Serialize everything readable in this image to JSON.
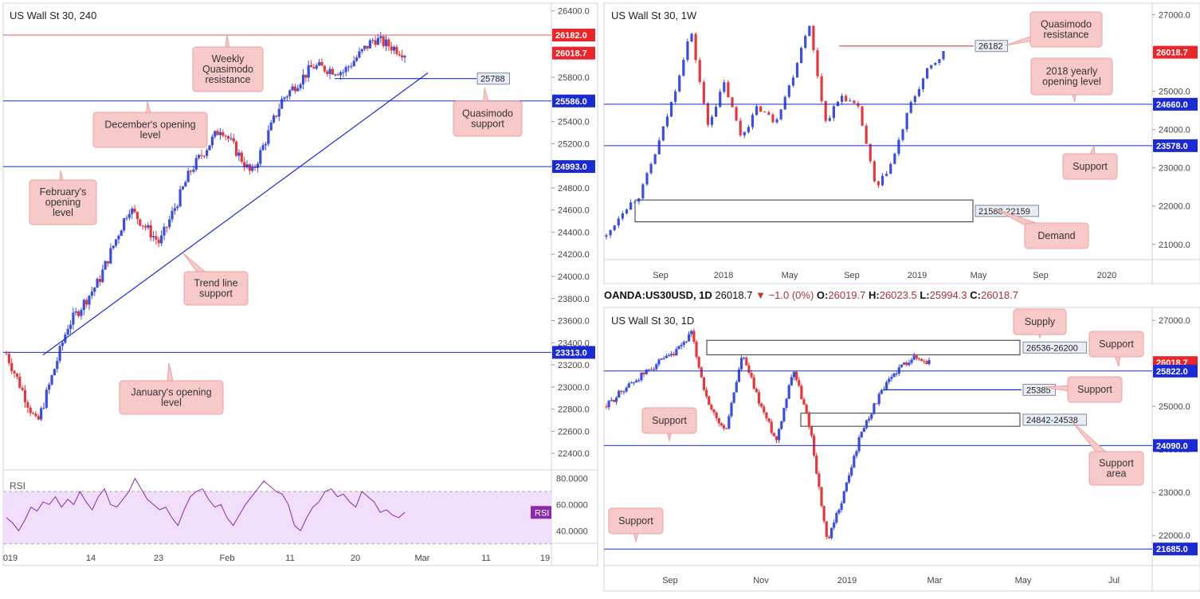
{
  "colors": {
    "up": "#3c4fd6",
    "down": "#e0393f",
    "level": "#1b2bd1",
    "resistance": "#e05555",
    "callout_bg": "#f7c9c9",
    "callout_border": "#e8a2a2",
    "rsi_line": "#8a2aa8",
    "rsi_band": "#f1defa",
    "rsi_tag": "#8a2aa8"
  },
  "chart_data": [
    {
      "id": "h4",
      "type": "candlestick",
      "title": "US Wall St 30, 240",
      "x_ticks": [
        "019",
        "14",
        "23",
        "Feb",
        "11",
        "20",
        "Mar",
        "11",
        "19"
      ],
      "y_ticks": [
        "26400.0",
        "26200.0",
        "26000.0",
        "25800.0",
        "25600.0",
        "25400.0",
        "25200.0",
        "25000.0",
        "24800.0",
        "24600.0",
        "24400.0",
        "24200.0",
        "24000.0",
        "23800.0",
        "23600.0",
        "23400.0",
        "23200.0",
        "23000.0",
        "22800.0",
        "22600.0",
        "22400.0"
      ],
      "ylim": [
        22250,
        26470
      ],
      "levels": [
        {
          "value": 26182.0,
          "label": "26182.0",
          "style": "resistance"
        },
        {
          "value": 26018.7,
          "label": "26018.7",
          "style": "price"
        },
        {
          "value": 25586.0,
          "label": "25586.0",
          "style": "level"
        },
        {
          "value": 24993.0,
          "label": "24993.0",
          "style": "level"
        },
        {
          "value": 23313.0,
          "label": "23313.0",
          "style": "level"
        }
      ],
      "line_tags": [
        {
          "value": 25788,
          "label": "25788"
        }
      ],
      "callouts": [
        "Weekly\nQuasimodo\nresistance",
        "December's opening\nlevel",
        "Quasimodo\nsupport",
        "February's\nopening\nlevel",
        "Trend line\nsupport",
        "January's opening\nlevel"
      ],
      "trend": {
        "from_value": 23290,
        "to_value": 25840
      },
      "anchors": [
        23300,
        22660,
        23550,
        23950,
        24620,
        24300,
        24950,
        25350,
        24920,
        25600,
        25900,
        25850,
        26150,
        26020
      ],
      "rsi": {
        "label": "RSI",
        "tag": "RSI",
        "y_ticks": [
          "80.0000",
          "60.0000",
          "40.0000"
        ],
        "ylim": [
          28,
          84
        ],
        "band": [
          30,
          70
        ],
        "values": [
          50,
          46,
          40,
          48,
          58,
          55,
          62,
          60,
          66,
          58,
          64,
          60,
          70,
          62,
          56,
          66,
          72,
          60,
          58,
          64,
          70,
          80,
          72,
          64,
          60,
          56,
          58,
          50,
          44,
          56,
          66,
          70,
          72,
          64,
          58,
          60,
          50,
          44,
          52,
          60,
          66,
          72,
          78,
          74,
          70,
          68,
          60,
          44,
          40,
          50,
          58,
          62,
          70,
          72,
          66,
          68,
          62,
          58,
          70,
          66,
          62,
          54,
          56,
          52,
          50,
          54
        ]
      }
    },
    {
      "id": "weekly",
      "type": "candlestick",
      "title": "US Wall St 30, 1W",
      "x_ticks": [
        "Sep",
        "2018",
        "May",
        "Sep",
        "2019",
        "May",
        "Sep",
        "2020"
      ],
      "y_ticks": [
        "27000.0",
        "26000.0",
        "25000.0",
        "24000.0",
        "23000.0",
        "22000.0",
        "21000.0"
      ],
      "ylim": [
        20600,
        27300
      ],
      "levels": [
        {
          "value": 26018.7,
          "label": "26018.7",
          "style": "price"
        },
        {
          "value": 24660.0,
          "label": "24660.0",
          "style": "level"
        },
        {
          "value": 23578.0,
          "label": "23578.0",
          "style": "level"
        }
      ],
      "line_tags": [
        {
          "value": 26182,
          "label": "26182"
        }
      ],
      "zones": [
        {
          "low": 21588,
          "high": 22159,
          "label": "21588-22159"
        }
      ],
      "callouts": [
        "Quasimodo\nresistance",
        "2018 yearly\nopening level",
        "Support",
        "Demand"
      ],
      "anchors": [
        21200,
        21900,
        22300,
        23500,
        24900,
        26600,
        24100,
        25200,
        23800,
        24600,
        24200,
        25300,
        26800,
        24200,
        24900,
        24500,
        22400,
        23200,
        24600,
        25500,
        26000
      ]
    },
    {
      "id": "daily",
      "type": "candlestick",
      "title": "US Wall St 30, 1D",
      "x_ticks": [
        "Sep",
        "Nov",
        "2019",
        "Mar",
        "May",
        "Jul"
      ],
      "y_ticks": [
        "27000.0",
        "26000.0",
        "25000.0",
        "24000.0",
        "23000.0",
        "22000.0"
      ],
      "ylim": [
        21300,
        27300
      ],
      "levels": [
        {
          "value": 26018.7,
          "label": "26018.7",
          "style": "price"
        },
        {
          "value": 25822.0,
          "label": "25822.0",
          "style": "level"
        },
        {
          "value": 24090.0,
          "label": "24090.0",
          "style": "level"
        },
        {
          "value": 21685.0,
          "label": "21685.0",
          "style": "level"
        }
      ],
      "line_tags": [
        {
          "value": 25385,
          "label": "25385"
        }
      ],
      "zones": [
        {
          "low": 26200,
          "high": 26536,
          "label": "26536-26200"
        },
        {
          "low": 24538,
          "high": 24842,
          "label": "24842-24538"
        }
      ],
      "callouts": [
        "Supply",
        "Support",
        "Support",
        "Support",
        "Support\narea",
        "Support"
      ],
      "anchors": [
        25000,
        25400,
        25700,
        26000,
        26200,
        26700,
        25000,
        24400,
        26200,
        25100,
        24200,
        25900,
        24500,
        21800,
        23000,
        24400,
        25200,
        25800,
        26150,
        26020
      ]
    }
  ],
  "ohlc": {
    "symbol": "OANDA:US30USD, 1D",
    "last": "26018.7",
    "change": "−1.0 (0%)",
    "o_label": "O:",
    "o": "26019.7",
    "h_label": "H:",
    "h": "26023.5",
    "l_label": "L:",
    "l": "25994.3",
    "c_label": "C:",
    "c": "26018.7"
  }
}
